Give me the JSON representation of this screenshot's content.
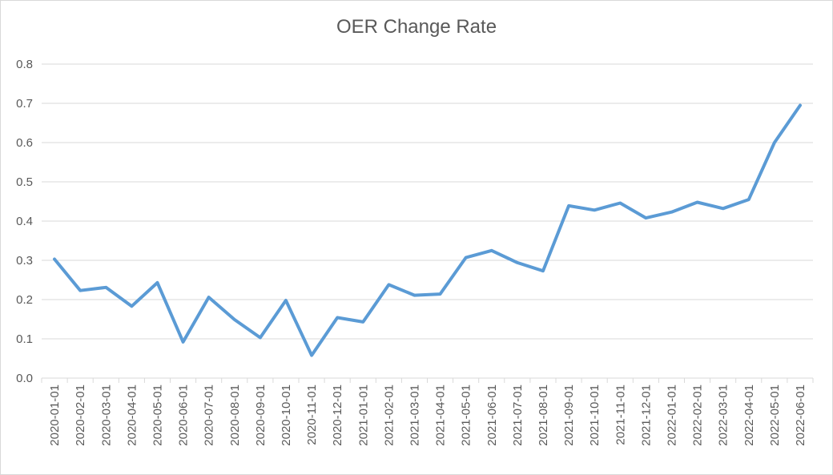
{
  "chart_data": {
    "type": "line",
    "title": "OER Change Rate",
    "xlabel": "",
    "ylabel": "",
    "ylim": [
      0,
      0.8
    ],
    "yticks": [
      "0.0",
      "0.1",
      "0.2",
      "0.3",
      "0.4",
      "0.5",
      "0.6",
      "0.7",
      "0.8"
    ],
    "grid": "horizontal",
    "legend": "none",
    "line_color": "#5b9bd5",
    "categories": [
      "2020-01-01",
      "2020-02-01",
      "2020-03-01",
      "2020-04-01",
      "2020-05-01",
      "2020-06-01",
      "2020-07-01",
      "2020-08-01",
      "2020-09-01",
      "2020-10-01",
      "2020-11-01",
      "2020-12-01",
      "2021-01-01",
      "2021-02-01",
      "2021-03-01",
      "2021-04-01",
      "2021-05-01",
      "2021-06-01",
      "2021-07-01",
      "2021-08-01",
      "2021-09-01",
      "2021-10-01",
      "2021-11-01",
      "2021-12-01",
      "2022-01-01",
      "2022-02-01",
      "2022-03-01",
      "2022-04-01",
      "2022-05-01",
      "2022-06-01"
    ],
    "series": [
      {
        "values": [
          0.303,
          0.223,
          0.231,
          0.183,
          0.243,
          0.092,
          0.206,
          0.149,
          0.103,
          0.198,
          0.058,
          0.154,
          0.143,
          0.238,
          0.211,
          0.214,
          0.307,
          0.325,
          0.294,
          0.273,
          0.439,
          0.428,
          0.446,
          0.408,
          0.423,
          0.448,
          0.432,
          0.455,
          0.6,
          0.695
        ]
      }
    ]
  }
}
